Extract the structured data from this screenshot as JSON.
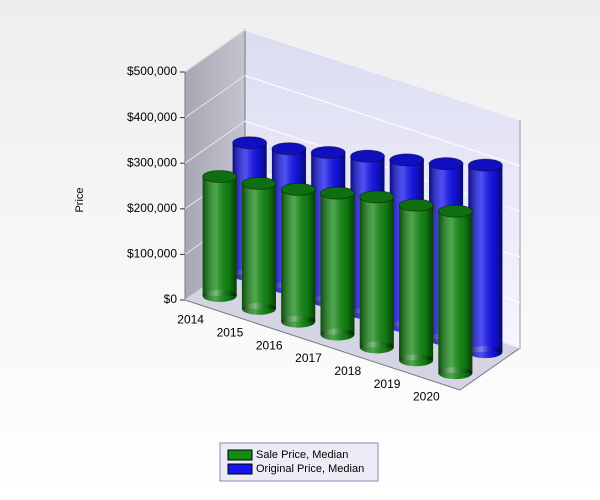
{
  "chart_data": {
    "type": "bar3d",
    "y_label": "Price",
    "categories": [
      "2014",
      "2015",
      "2016",
      "2017",
      "2018",
      "2019",
      "2020"
    ],
    "series": [
      {
        "name": "Sale Price, Median",
        "color": "#138a13",
        "values": [
          262000,
          275000,
          290000,
          310000,
          330000,
          340000,
          355000
        ]
      },
      {
        "name": "Original Price, Median",
        "color": "#1414f0",
        "values": [
          290000,
          305000,
          325000,
          345000,
          365000,
          385000,
          410000
        ]
      }
    ],
    "ylim": [
      0,
      500000
    ],
    "yticks": [
      {
        "value": 0,
        "label": "$0"
      },
      {
        "value": 100000,
        "label": "$100,000"
      },
      {
        "value": 200000,
        "label": "$200,000"
      },
      {
        "value": 300000,
        "label": "$300,000"
      },
      {
        "value": 400000,
        "label": "$400,000"
      },
      {
        "value": 500000,
        "label": "$500,000"
      }
    ],
    "grid": true,
    "legend": "bottom"
  }
}
